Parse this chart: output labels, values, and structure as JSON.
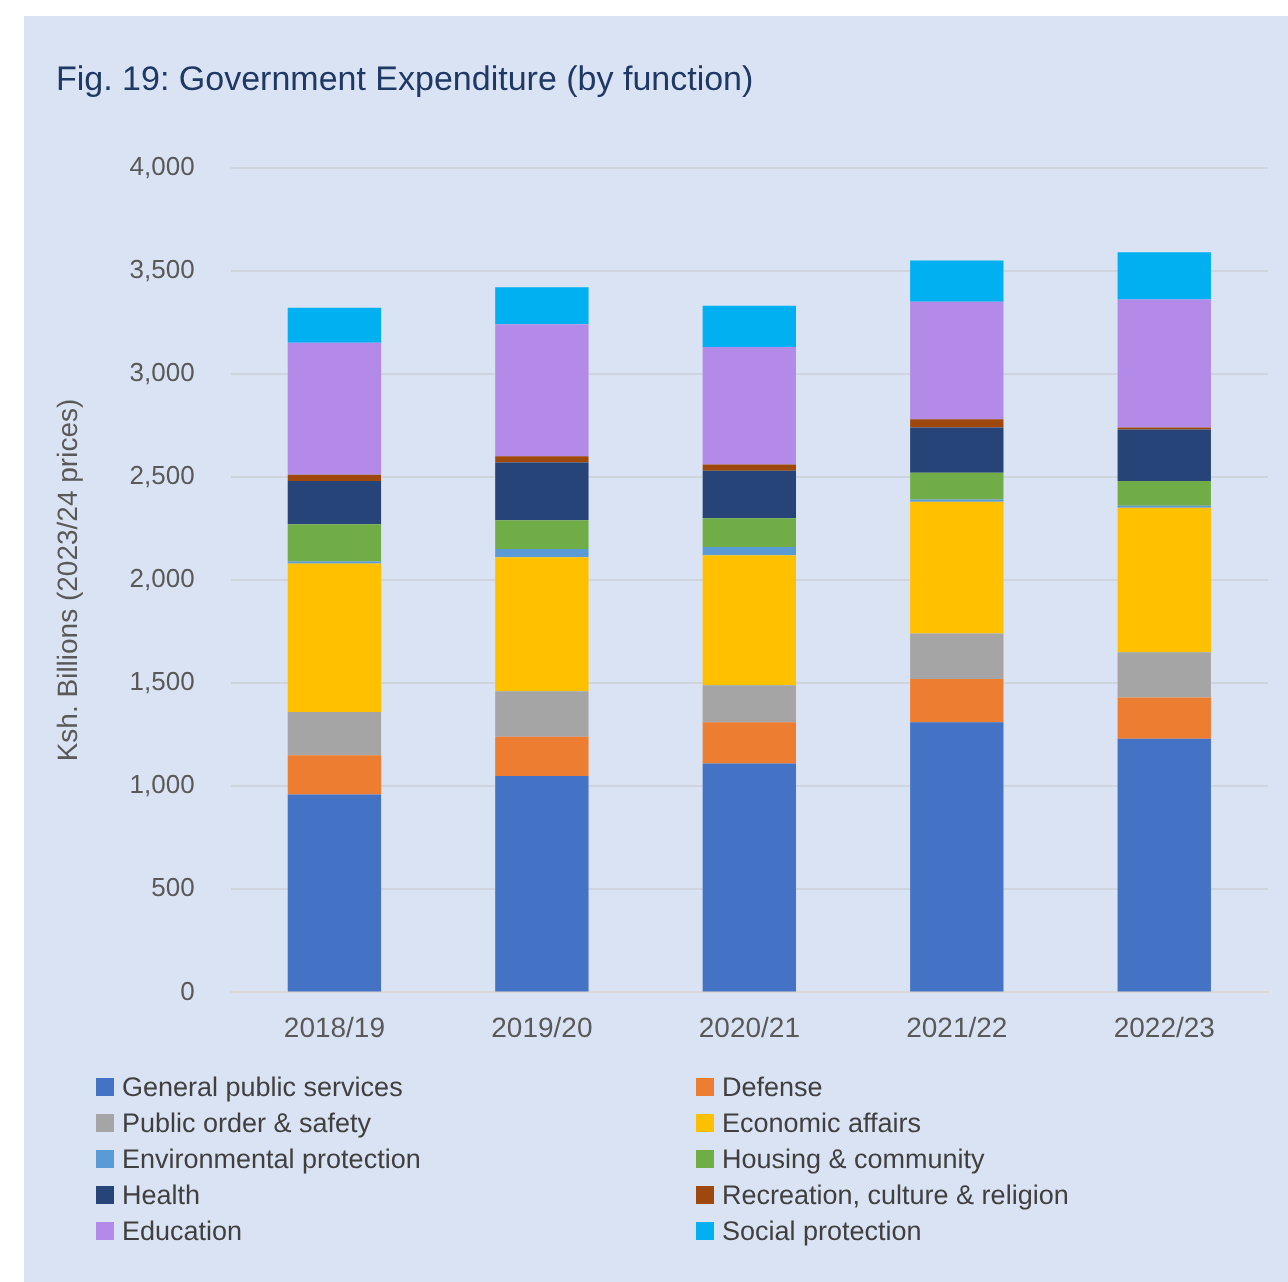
{
  "chart_data": {
    "type": "bar",
    "stacked": true,
    "title": "Fig. 19: Government Expenditure (by function)",
    "ylabel": "Ksh. Billions (2023/24 prices)",
    "categories": [
      "2018/19",
      "2019/20",
      "2020/21",
      "2021/22",
      "2022/23"
    ],
    "series": [
      {
        "name": "General public services",
        "color": "#4472c4",
        "values": [
          960,
          1050,
          1110,
          1310,
          1230
        ]
      },
      {
        "name": "Defense",
        "color": "#ed7d31",
        "values": [
          190,
          190,
          200,
          210,
          200
        ]
      },
      {
        "name": "Public order & safety",
        "color": "#a5a5a5",
        "values": [
          210,
          220,
          180,
          220,
          220
        ]
      },
      {
        "name": "Economic affairs",
        "color": "#ffc000",
        "values": [
          720,
          650,
          630,
          640,
          700
        ]
      },
      {
        "name": "Environmental protection",
        "color": "#5b9bd5",
        "values": [
          10,
          40,
          40,
          10,
          10
        ]
      },
      {
        "name": "Housing & community",
        "color": "#70ad47",
        "values": [
          180,
          140,
          140,
          130,
          120
        ]
      },
      {
        "name": "Health",
        "color": "#264478",
        "values": [
          210,
          280,
          230,
          220,
          250
        ]
      },
      {
        "name": "Recreation, culture & religion",
        "color": "#9e480e",
        "values": [
          30,
          30,
          30,
          40,
          10
        ]
      },
      {
        "name": "Education",
        "color": "#b48ae8",
        "values": [
          640,
          640,
          570,
          570,
          620
        ]
      },
      {
        "name": "Social protection",
        "color": "#00b0f0",
        "values": [
          170,
          180,
          200,
          200,
          230
        ]
      }
    ],
    "ylim": [
      0,
      4000
    ],
    "yticks": [
      0,
      500,
      {
        "value": 1000,
        "label": "1,000"
      },
      {
        "value": 1500,
        "label": "1,500"
      },
      {
        "value": 2000,
        "label": "2,000"
      },
      {
        "value": 2500,
        "label": "2,500"
      },
      {
        "value": 3000,
        "label": "3,000"
      },
      {
        "value": 3500,
        "label": "3,500"
      },
      {
        "value": 4000,
        "label": "4,000"
      }
    ],
    "grid": "y",
    "legend": "bottom"
  }
}
